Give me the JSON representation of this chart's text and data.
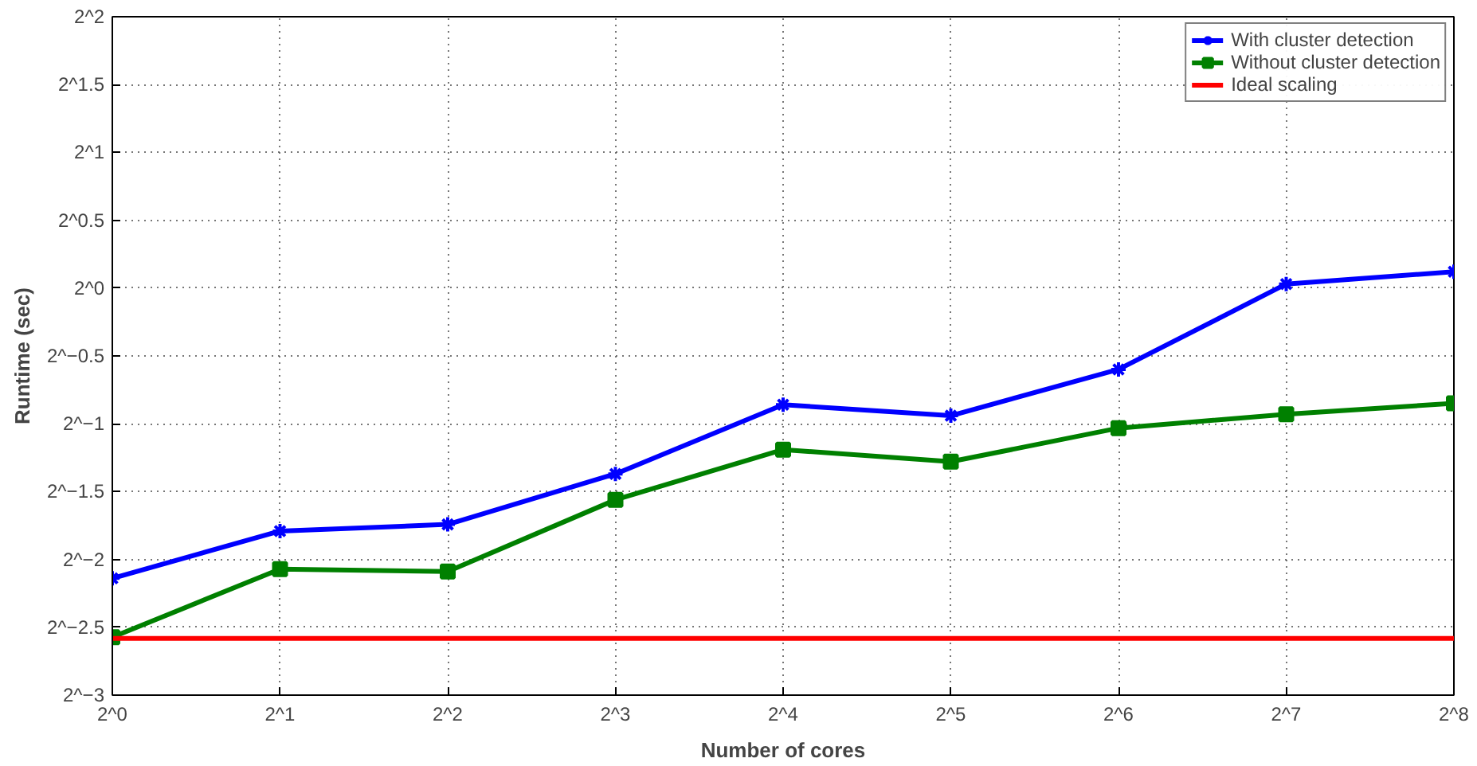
{
  "chart_data": {
    "type": "line",
    "xlabel": "Number of cores",
    "ylabel": "Runtime (sec)",
    "x": [
      1,
      2,
      4,
      8,
      16,
      32,
      64,
      128,
      256
    ],
    "series": [
      {
        "name": "With cluster detection",
        "color": "#0000ff",
        "marker": "cross",
        "values": [
          0.227,
          0.289,
          0.299,
          0.387,
          0.551,
          0.521,
          0.66,
          1.021,
          1.087
        ]
      },
      {
        "name": "Without cluster detection",
        "color": "#008000",
        "marker": "square",
        "values": [
          0.168,
          0.238,
          0.235,
          0.339,
          0.438,
          0.412,
          0.489,
          0.525,
          0.555
        ]
      },
      {
        "name": "Ideal scaling",
        "color": "#ff0000",
        "marker": "none",
        "x": [
          1,
          256
        ],
        "values": [
          0.167,
          0.167
        ]
      }
    ],
    "log": "xy",
    "xlim": [
      1,
      256
    ],
    "ylim": [
      0.125,
      4
    ],
    "xticks": [
      {
        "value": 1,
        "label": "2^0"
      },
      {
        "value": 2,
        "label": "2^1"
      },
      {
        "value": 4,
        "label": "2^2"
      },
      {
        "value": 8,
        "label": "2^3"
      },
      {
        "value": 16,
        "label": "2^4"
      },
      {
        "value": 32,
        "label": "2^5"
      },
      {
        "value": 64,
        "label": "2^6"
      },
      {
        "value": 128,
        "label": "2^7"
      },
      {
        "value": 256,
        "label": "2^8"
      }
    ],
    "yticks": [
      {
        "value": 0.125,
        "label": "2^−3"
      },
      {
        "value": 0.1768,
        "label": "2^−2.5"
      },
      {
        "value": 0.25,
        "label": "2^−2"
      },
      {
        "value": 0.3536,
        "label": "2^−1.5"
      },
      {
        "value": 0.5,
        "label": "2^−1"
      },
      {
        "value": 0.7071,
        "label": "2^−0.5"
      },
      {
        "value": 1,
        "label": "2^0"
      },
      {
        "value": 1.4142,
        "label": "2^0.5"
      },
      {
        "value": 2,
        "label": "2^1"
      },
      {
        "value": 2.8284,
        "label": "2^1.5"
      },
      {
        "value": 4,
        "label": "2^2"
      }
    ],
    "grid": true,
    "legend": "top right",
    "line_style": "solid"
  }
}
